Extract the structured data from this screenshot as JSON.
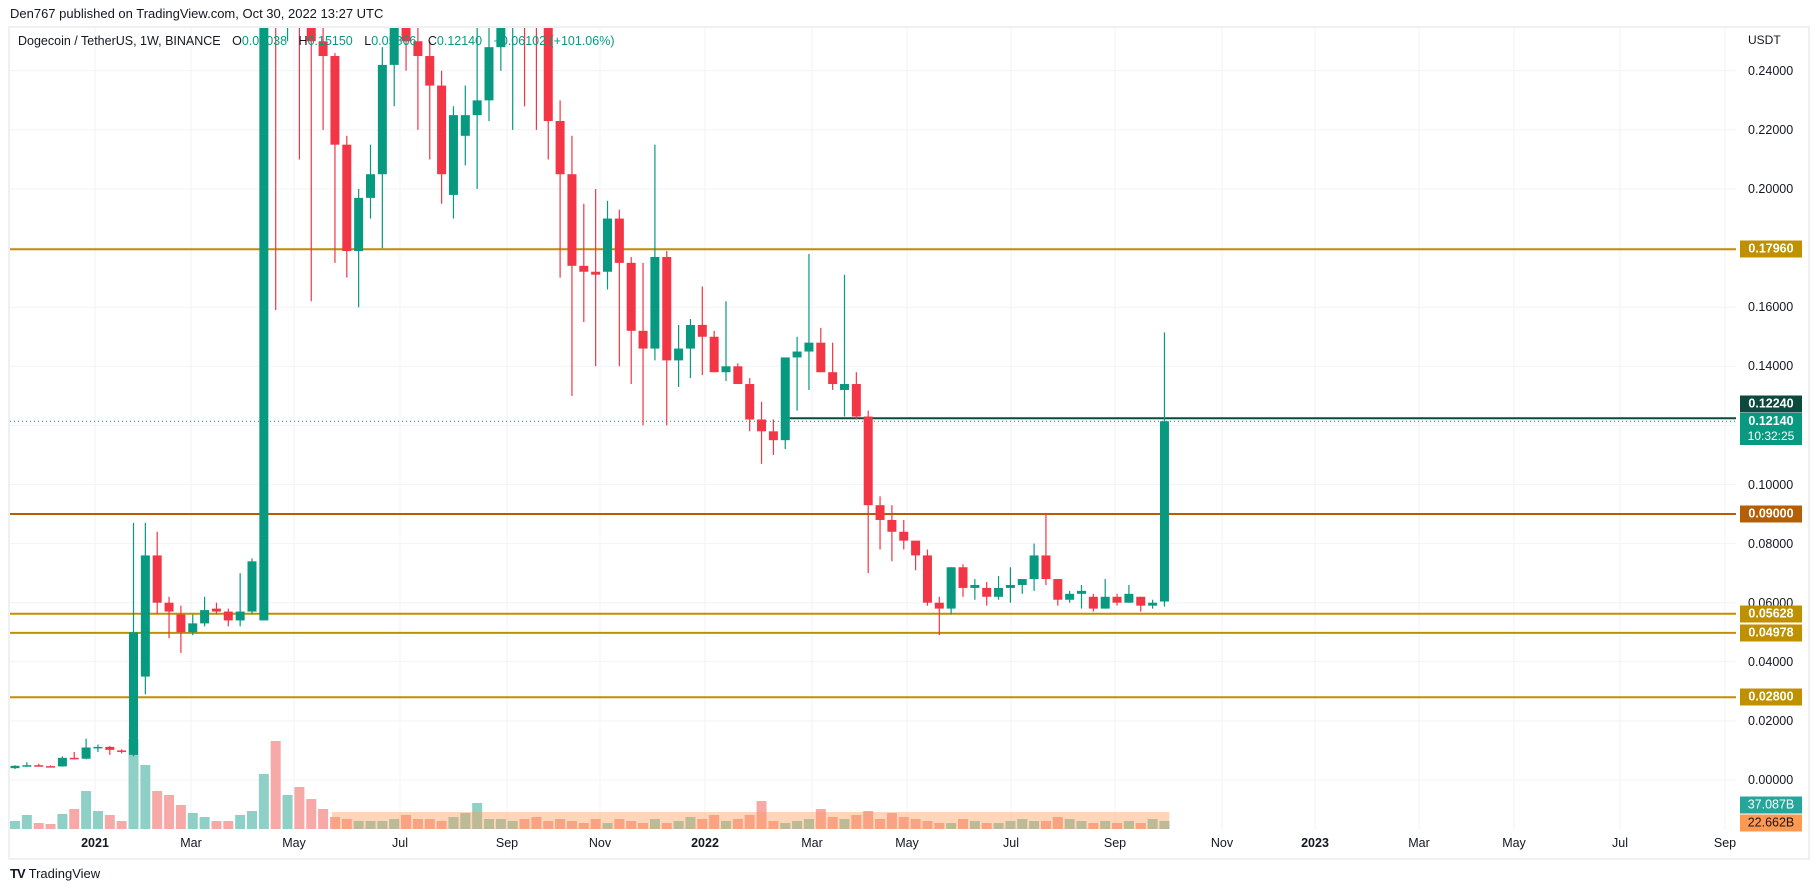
{
  "header": {
    "published_line": "Den767 published on TradingView.com, Oct 30, 2022 13:27 UTC"
  },
  "legend": {
    "symbol": "Dogecoin / TetherUS, 1W, BINANCE",
    "open_label": "O",
    "open": "0.06038",
    "high_label": "H",
    "high": "0.15150",
    "low_label": "L",
    "low": "0.05866",
    "close_label": "C",
    "close": "0.12140",
    "change": "+0.06102 (+101.06%)"
  },
  "price_axis": {
    "unit": "USDT",
    "ticks": [
      "0.24000",
      "0.22000",
      "0.20000",
      "0.16000",
      "0.14000",
      "0.10000",
      "0.08000",
      "0.06000",
      "0.04000",
      "0.02000",
      "0.00000"
    ]
  },
  "tags": {
    "r1": "0.17960",
    "line_level": "0.12240",
    "last_price": "0.12140",
    "countdown": "10:32:25",
    "s1": "0.09000",
    "s2": "0.05628",
    "s3": "0.04978",
    "s4": "0.02800",
    "vol_up": "37.087B",
    "vol_ma": "22.662B"
  },
  "time_axis": {
    "labels": [
      "2021",
      "Mar",
      "May",
      "Jul",
      "Sep",
      "Nov",
      "2022",
      "Mar",
      "May",
      "Jul",
      "Sep",
      "Nov",
      "2023",
      "Mar",
      "May",
      "Jul",
      "Sep"
    ]
  },
  "footer": {
    "logo": "TV",
    "brand": "TradingView"
  },
  "colors": {
    "up": "#089981",
    "down": "#F23645",
    "level_gold": "#BF9000",
    "level_orange": "#B45F06",
    "level_dark": "#0B4A3C",
    "vol_up": "#8FD0C6",
    "vol_down": "#F7A9A7",
    "vol_ma": "#FF9850"
  },
  "chart_data": {
    "type": "candlestick",
    "title": "Dogecoin / TetherUS, 1W, BINANCE",
    "ylabel": "USDT",
    "ylim": [
      0.0,
      0.245
    ],
    "grid": true,
    "x_tick_labels": [
      "2021",
      "Mar",
      "May",
      "Jul",
      "Sep",
      "Nov",
      "2022",
      "Mar",
      "May",
      "Jul",
      "Sep",
      "Nov",
      "2023",
      "Mar",
      "May",
      "Jul",
      "Sep"
    ],
    "horizontal_levels": [
      {
        "value": 0.1796,
        "color": "#BF9000"
      },
      {
        "value": 0.1224,
        "color": "#0B4A3C"
      },
      {
        "value": 0.09,
        "color": "#B45F06"
      },
      {
        "value": 0.05628,
        "color": "#BF9000"
      },
      {
        "value": 0.04978,
        "color": "#BF9000"
      },
      {
        "value": 0.028,
        "color": "#BF9000"
      }
    ],
    "last_price": 0.1214,
    "candles": [
      {
        "o": 0.004,
        "h": 0.005,
        "l": 0.0037,
        "c": 0.0048
      },
      {
        "o": 0.0048,
        "h": 0.006,
        "l": 0.0045,
        "c": 0.005
      },
      {
        "o": 0.005,
        "h": 0.0055,
        "l": 0.0046,
        "c": 0.0047
      },
      {
        "o": 0.0047,
        "h": 0.0049,
        "l": 0.0045,
        "c": 0.0046
      },
      {
        "o": 0.0046,
        "h": 0.008,
        "l": 0.0045,
        "c": 0.0075
      },
      {
        "o": 0.0075,
        "h": 0.0095,
        "l": 0.007,
        "c": 0.0072
      },
      {
        "o": 0.0072,
        "h": 0.014,
        "l": 0.007,
        "c": 0.011
      },
      {
        "o": 0.011,
        "h": 0.012,
        "l": 0.0095,
        "c": 0.0112
      },
      {
        "o": 0.0112,
        "h": 0.0115,
        "l": 0.0085,
        "c": 0.0102
      },
      {
        "o": 0.01,
        "h": 0.0104,
        "l": 0.009,
        "c": 0.0095
      },
      {
        "o": 0.0085,
        "h": 0.087,
        "l": 0.008,
        "c": 0.05
      },
      {
        "o": 0.035,
        "h": 0.087,
        "l": 0.029,
        "c": 0.076
      },
      {
        "o": 0.076,
        "h": 0.084,
        "l": 0.056,
        "c": 0.06
      },
      {
        "o": 0.06,
        "h": 0.062,
        "l": 0.048,
        "c": 0.057
      },
      {
        "o": 0.056,
        "h": 0.059,
        "l": 0.043,
        "c": 0.05
      },
      {
        "o": 0.05,
        "h": 0.056,
        "l": 0.049,
        "c": 0.053
      },
      {
        "o": 0.053,
        "h": 0.062,
        "l": 0.052,
        "c": 0.0575
      },
      {
        "o": 0.058,
        "h": 0.06,
        "l": 0.056,
        "c": 0.057
      },
      {
        "o": 0.057,
        "h": 0.058,
        "l": 0.052,
        "c": 0.054
      },
      {
        "o": 0.054,
        "h": 0.07,
        "l": 0.052,
        "c": 0.057
      },
      {
        "o": 0.057,
        "h": 0.075,
        "l": 0.056,
        "c": 0.074
      },
      {
        "o": 0.054,
        "h": 0.35,
        "l": 0.068,
        "c": 0.3
      },
      {
        "o": 0.3,
        "h": 0.45,
        "l": 0.159,
        "c": 0.26
      },
      {
        "o": 0.26,
        "h": 0.4,
        "l": 0.25,
        "c": 0.32
      },
      {
        "o": 0.32,
        "h": 0.34,
        "l": 0.21,
        "c": 0.29
      },
      {
        "o": 0.29,
        "h": 0.32,
        "l": 0.162,
        "c": 0.25
      },
      {
        "o": 0.25,
        "h": 0.26,
        "l": 0.22,
        "c": 0.245
      },
      {
        "o": 0.245,
        "h": 0.246,
        "l": 0.175,
        "c": 0.215
      },
      {
        "o": 0.215,
        "h": 0.218,
        "l": 0.17,
        "c": 0.179
      },
      {
        "o": 0.179,
        "h": 0.2,
        "l": 0.16,
        "c": 0.197
      },
      {
        "o": 0.197,
        "h": 0.215,
        "l": 0.19,
        "c": 0.205
      },
      {
        "o": 0.205,
        "h": 0.248,
        "l": 0.18,
        "c": 0.242
      },
      {
        "o": 0.242,
        "h": 0.27,
        "l": 0.228,
        "c": 0.26
      },
      {
        "o": 0.26,
        "h": 0.3,
        "l": 0.24,
        "c": 0.25
      },
      {
        "o": 0.25,
        "h": 0.27,
        "l": 0.22,
        "c": 0.245
      },
      {
        "o": 0.245,
        "h": 0.25,
        "l": 0.21,
        "c": 0.235
      },
      {
        "o": 0.235,
        "h": 0.24,
        "l": 0.195,
        "c": 0.205
      },
      {
        "o": 0.198,
        "h": 0.228,
        "l": 0.19,
        "c": 0.225
      },
      {
        "o": 0.218,
        "h": 0.235,
        "l": 0.208,
        "c": 0.225
      },
      {
        "o": 0.225,
        "h": 0.27,
        "l": 0.2,
        "c": 0.23
      },
      {
        "o": 0.23,
        "h": 0.262,
        "l": 0.223,
        "c": 0.248
      },
      {
        "o": 0.248,
        "h": 0.28,
        "l": 0.24,
        "c": 0.27
      },
      {
        "o": 0.27,
        "h": 0.31,
        "l": 0.22,
        "c": 0.285
      },
      {
        "o": 0.285,
        "h": 0.29,
        "l": 0.228,
        "c": 0.262
      },
      {
        "o": 0.262,
        "h": 0.26,
        "l": 0.22,
        "c": 0.255
      },
      {
        "o": 0.255,
        "h": 0.262,
        "l": 0.21,
        "c": 0.223
      },
      {
        "o": 0.223,
        "h": 0.23,
        "l": 0.17,
        "c": 0.205
      },
      {
        "o": 0.205,
        "h": 0.218,
        "l": 0.13,
        "c": 0.174
      },
      {
        "o": 0.174,
        "h": 0.195,
        "l": 0.155,
        "c": 0.172
      },
      {
        "o": 0.172,
        "h": 0.2,
        "l": 0.14,
        "c": 0.171
      },
      {
        "o": 0.172,
        "h": 0.196,
        "l": 0.166,
        "c": 0.19
      },
      {
        "o": 0.19,
        "h": 0.193,
        "l": 0.14,
        "c": 0.175
      },
      {
        "o": 0.175,
        "h": 0.177,
        "l": 0.134,
        "c": 0.152
      },
      {
        "o": 0.152,
        "h": 0.175,
        "l": 0.12,
        "c": 0.146
      },
      {
        "o": 0.146,
        "h": 0.215,
        "l": 0.142,
        "c": 0.177
      },
      {
        "o": 0.177,
        "h": 0.179,
        "l": 0.12,
        "c": 0.142
      },
      {
        "o": 0.142,
        "h": 0.154,
        "l": 0.133,
        "c": 0.146
      },
      {
        "o": 0.146,
        "h": 0.156,
        "l": 0.136,
        "c": 0.154
      },
      {
        "o": 0.154,
        "h": 0.167,
        "l": 0.137,
        "c": 0.15
      },
      {
        "o": 0.15,
        "h": 0.152,
        "l": 0.138,
        "c": 0.138
      },
      {
        "o": 0.138,
        "h": 0.162,
        "l": 0.135,
        "c": 0.14
      },
      {
        "o": 0.14,
        "h": 0.141,
        "l": 0.137,
        "c": 0.134
      },
      {
        "o": 0.134,
        "h": 0.136,
        "l": 0.118,
        "c": 0.122
      },
      {
        "o": 0.122,
        "h": 0.128,
        "l": 0.107,
        "c": 0.118
      },
      {
        "o": 0.118,
        "h": 0.122,
        "l": 0.11,
        "c": 0.115
      },
      {
        "o": 0.115,
        "h": 0.128,
        "l": 0.112,
        "c": 0.143
      },
      {
        "o": 0.143,
        "h": 0.15,
        "l": 0.125,
        "c": 0.145
      },
      {
        "o": 0.145,
        "h": 0.178,
        "l": 0.132,
        "c": 0.148
      },
      {
        "o": 0.148,
        "h": 0.153,
        "l": 0.138,
        "c": 0.138
      },
      {
        "o": 0.138,
        "h": 0.148,
        "l": 0.132,
        "c": 0.134
      },
      {
        "o": 0.132,
        "h": 0.171,
        "l": 0.123,
        "c": 0.134
      },
      {
        "o": 0.134,
        "h": 0.138,
        "l": 0.122,
        "c": 0.123
      },
      {
        "o": 0.123,
        "h": 0.125,
        "l": 0.07,
        "c": 0.093
      },
      {
        "o": 0.093,
        "h": 0.096,
        "l": 0.078,
        "c": 0.088
      },
      {
        "o": 0.088,
        "h": 0.093,
        "l": 0.074,
        "c": 0.084
      },
      {
        "o": 0.084,
        "h": 0.088,
        "l": 0.078,
        "c": 0.081
      },
      {
        "o": 0.081,
        "h": 0.08,
        "l": 0.071,
        "c": 0.076
      },
      {
        "o": 0.076,
        "h": 0.078,
        "l": 0.059,
        "c": 0.06
      },
      {
        "o": 0.06,
        "h": 0.062,
        "l": 0.049,
        "c": 0.058
      },
      {
        "o": 0.058,
        "h": 0.072,
        "l": 0.056,
        "c": 0.072
      },
      {
        "o": 0.072,
        "h": 0.073,
        "l": 0.062,
        "c": 0.065
      },
      {
        "o": 0.065,
        "h": 0.068,
        "l": 0.061,
        "c": 0.066
      },
      {
        "o": 0.065,
        "h": 0.067,
        "l": 0.059,
        "c": 0.062
      },
      {
        "o": 0.062,
        "h": 0.069,
        "l": 0.061,
        "c": 0.065
      },
      {
        "o": 0.065,
        "h": 0.072,
        "l": 0.06,
        "c": 0.066
      },
      {
        "o": 0.066,
        "h": 0.068,
        "l": 0.063,
        "c": 0.068
      },
      {
        "o": 0.068,
        "h": 0.08,
        "l": 0.064,
        "c": 0.076
      },
      {
        "o": 0.076,
        "h": 0.09,
        "l": 0.066,
        "c": 0.068
      },
      {
        "o": 0.068,
        "h": 0.068,
        "l": 0.059,
        "c": 0.061
      },
      {
        "o": 0.061,
        "h": 0.064,
        "l": 0.06,
        "c": 0.063
      },
      {
        "o": 0.063,
        "h": 0.066,
        "l": 0.058,
        "c": 0.064
      },
      {
        "o": 0.062,
        "h": 0.063,
        "l": 0.057,
        "c": 0.058
      },
      {
        "o": 0.058,
        "h": 0.068,
        "l": 0.058,
        "c": 0.062
      },
      {
        "o": 0.062,
        "h": 0.063,
        "l": 0.059,
        "c": 0.06
      },
      {
        "o": 0.06,
        "h": 0.066,
        "l": 0.06,
        "c": 0.063
      },
      {
        "o": 0.062,
        "h": 0.062,
        "l": 0.057,
        "c": 0.059
      },
      {
        "o": 0.059,
        "h": 0.061,
        "l": 0.058,
        "c": 0.06
      },
      {
        "o": 0.0604,
        "h": 0.1515,
        "l": 0.0587,
        "c": 0.1214
      }
    ],
    "volume_last": "37.087B",
    "volume_ma_last": "22.662B"
  }
}
